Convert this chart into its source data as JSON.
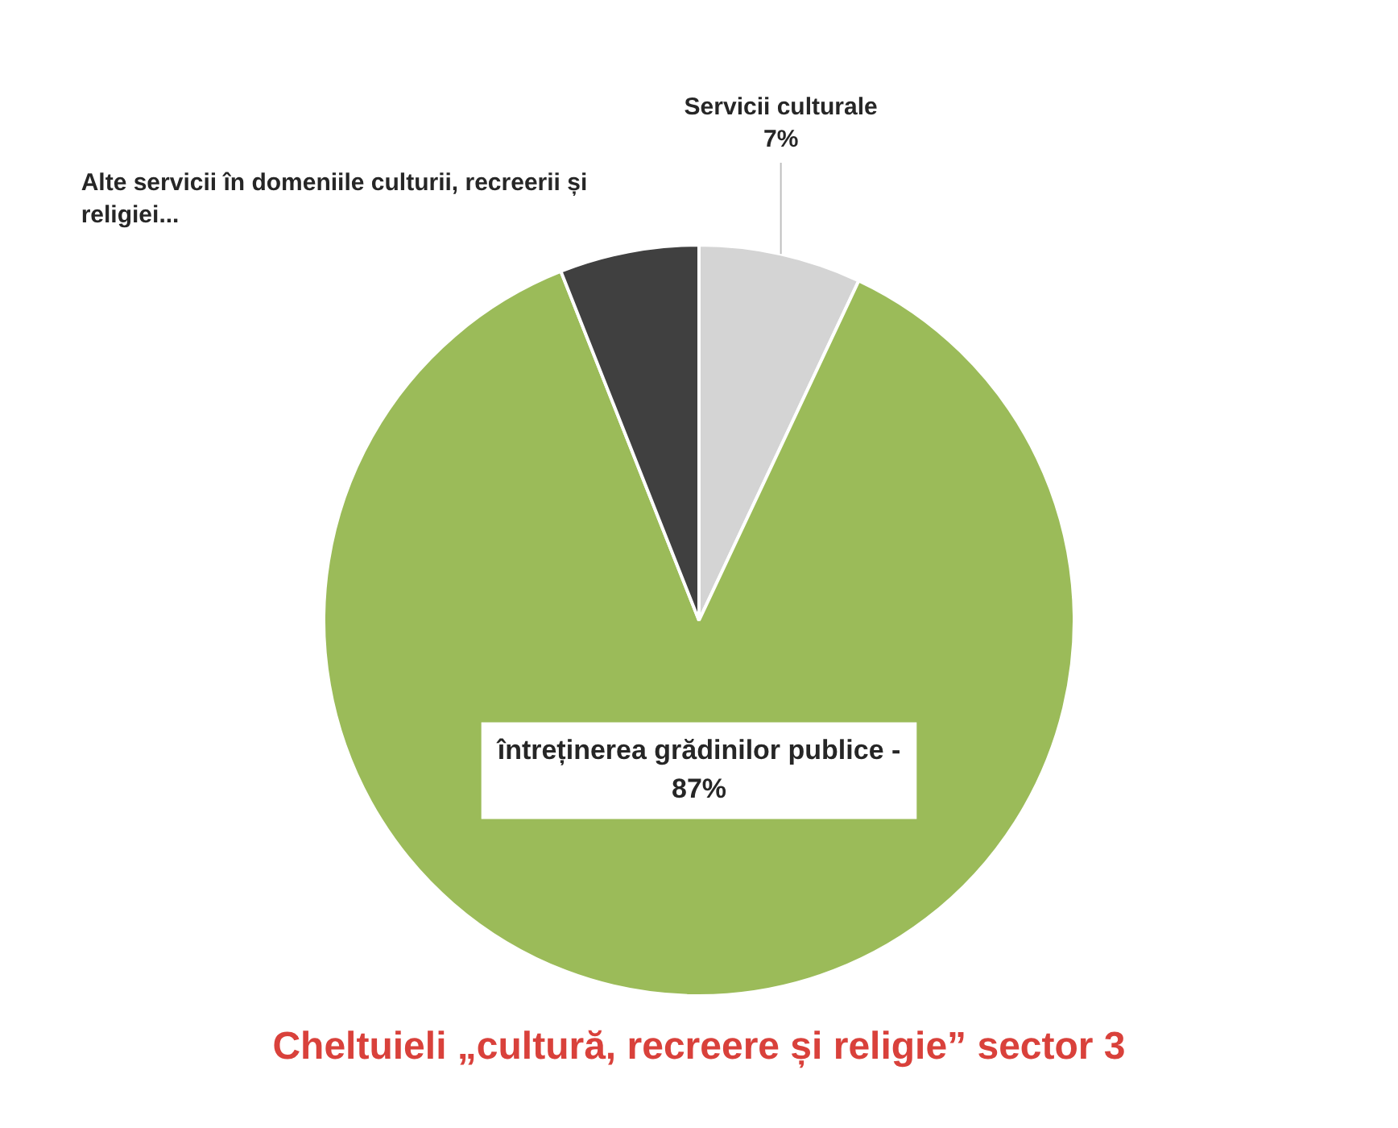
{
  "chart_data": {
    "type": "pie",
    "title": "Cheltuieli  „cultură, recreere și religie” sector 3",
    "categories": [
      "Servicii culturale",
      "întreținerea grădinilor publice -",
      "Alte servicii în domeniile culturii, recreerii și religiei..."
    ],
    "values": [
      7,
      87,
      6
    ],
    "value_labels": [
      "7%",
      "87%",
      null
    ],
    "colors": [
      "#d4d4d4",
      "#9bbb59",
      "#404040"
    ],
    "legend": false
  }
}
